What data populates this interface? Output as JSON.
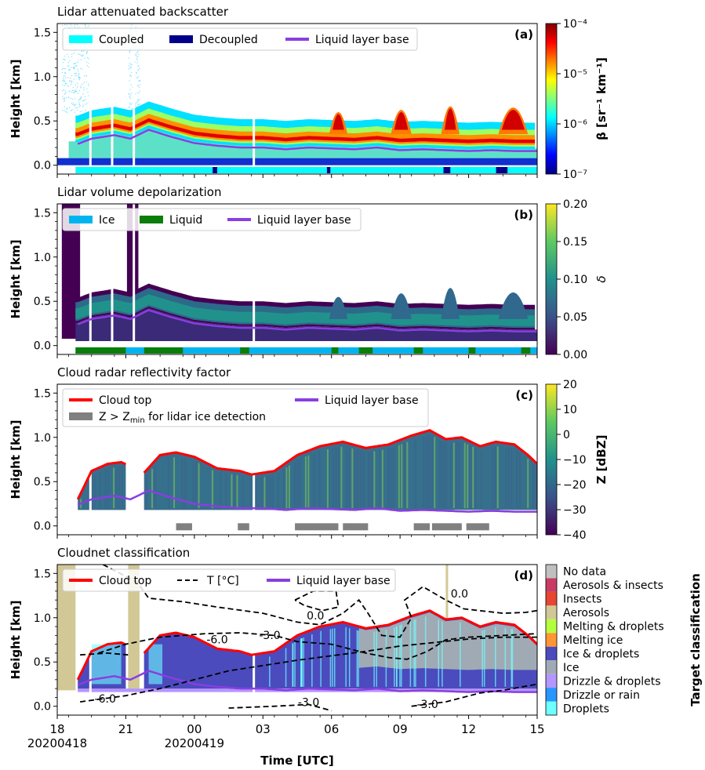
{
  "chart_data": [
    {
      "type": "heatmap",
      "id": "a",
      "title": "Lidar attenuated backscatter",
      "panel_label": "(a)",
      "ylabel": "Height [km]",
      "ylim": [
        -0.1,
        1.6
      ],
      "yticks": [
        "0.0",
        "0.5",
        "1.0",
        "1.5"
      ],
      "xlim": [
        18,
        39
      ],
      "colorbar": {
        "label": "β [sr⁻¹ km⁻¹]",
        "scale": "log",
        "ticks": [
          "10⁻⁴",
          "10⁻⁵",
          "10⁻⁶",
          "10⁻⁷"
        ],
        "range": [
          1e-07,
          0.0001
        ],
        "colors": [
          "#000080",
          "#0000ff",
          "#0080ff",
          "#00ffff",
          "#7fff7f",
          "#ffff00",
          "#ff8000",
          "#ff0000",
          "#800000"
        ]
      },
      "legend": [
        {
          "name": "Coupled",
          "color": "#00ffff",
          "kind": "patch"
        },
        {
          "name": "Decoupled",
          "color": "#00008b",
          "kind": "patch"
        },
        {
          "name": "Liquid layer base",
          "color": "#8a3ee0",
          "kind": "line"
        }
      ],
      "legend_placement": "top-left",
      "series": [
        {
          "name": "Liquid layer base",
          "x": [
            18.5,
            19.5,
            20.5,
            21.2,
            22.5,
            24,
            25.5,
            27,
            28.5,
            30,
            31.5,
            33,
            34.5,
            36,
            37.5,
            39
          ],
          "y": [
            0.2,
            0.3,
            0.35,
            0.3,
            0.32,
            0.28,
            0.26,
            0.24,
            0.22,
            0.2,
            0.18,
            0.18,
            0.17,
            0.16,
            0.17,
            0.24
          ]
        }
      ]
    },
    {
      "type": "heatmap",
      "id": "b",
      "title": "Lidar volume depolarization",
      "panel_label": "(b)",
      "ylabel": "Height [km]",
      "ylim": [
        -0.1,
        1.6
      ],
      "yticks": [
        "0.0",
        "0.5",
        "1.0",
        "1.5"
      ],
      "xlim": [
        18,
        39
      ],
      "colorbar": {
        "label": "δ",
        "scale": "linear",
        "ticks": [
          "0.20",
          "0.15",
          "0.10",
          "0.05",
          "0.00"
        ],
        "range": [
          0,
          0.2
        ],
        "colors": [
          "#440154",
          "#3b528b",
          "#21918c",
          "#5ec962",
          "#fde725"
        ]
      },
      "legend": [
        {
          "name": "Ice",
          "color": "#00b4f0",
          "kind": "patch"
        },
        {
          "name": "Liquid",
          "color": "#0a7d0a",
          "kind": "patch"
        },
        {
          "name": "Liquid layer base",
          "color": "#8a3ee0",
          "kind": "line"
        }
      ],
      "legend_placement": "top-left"
    },
    {
      "type": "heatmap",
      "id": "c",
      "title": "Cloud radar reflectivity factor",
      "panel_label": "(c)",
      "ylabel": "Height [km]",
      "ylim": [
        -0.1,
        1.6
      ],
      "yticks": [
        "0.0",
        "0.5",
        "1.0",
        "1.5"
      ],
      "xlim": [
        18,
        39
      ],
      "colorbar": {
        "label": "Z [dBZ]",
        "scale": "linear",
        "ticks": [
          "20",
          "10",
          "0",
          "−10",
          "−20",
          "−30",
          "−40"
        ],
        "range": [
          -40,
          20
        ],
        "colors": [
          "#440154",
          "#3b528b",
          "#21918c",
          "#5ec962",
          "#fde725"
        ]
      },
      "legend": [
        {
          "name": "Cloud top",
          "color": "#ff0000",
          "kind": "line"
        },
        {
          "name": "Z > Zmin for lidar ice detection",
          "color": "#808080",
          "kind": "patch"
        },
        {
          "name": "Liquid layer base",
          "color": "#8a3ee0",
          "kind": "line"
        }
      ],
      "legend_placement": "top",
      "series": [
        {
          "name": "Cloud top",
          "x": [
            18.9,
            19.5,
            20.2,
            20.8,
            21.3,
            21.8,
            22.5,
            23.2,
            24,
            25,
            26,
            26.5,
            27.5,
            28.5,
            29.5,
            30.5,
            31.5,
            32.5,
            33.5,
            34.3,
            35,
            35.7,
            36.5,
            37.2,
            38,
            38.6,
            39
          ],
          "y": [
            0.3,
            0.62,
            0.7,
            0.72,
            0.66,
            0.6,
            0.8,
            0.83,
            0.78,
            0.65,
            0.62,
            0.58,
            0.62,
            0.8,
            0.9,
            0.95,
            0.88,
            0.92,
            1.02,
            1.08,
            0.98,
            1.0,
            0.9,
            0.95,
            0.92,
            0.8,
            0.7
          ]
        },
        {
          "name": "Liquid layer base",
          "x": [
            18.9,
            19.5,
            20.5,
            21.2,
            22,
            23,
            24,
            25,
            26,
            27,
            28,
            29,
            30,
            31,
            32,
            33,
            34,
            35,
            36,
            37,
            38,
            39
          ],
          "y": [
            0.24,
            0.3,
            0.34,
            0.3,
            0.4,
            0.32,
            0.25,
            0.22,
            0.2,
            0.2,
            0.18,
            0.2,
            0.19,
            0.18,
            0.2,
            0.17,
            0.18,
            0.17,
            0.16,
            0.17,
            0.16,
            0.16
          ]
        },
        {
          "name": "Z > Zmin for lidar ice detection",
          "segments": [
            [
              23.2,
              23.9
            ],
            [
              25.9,
              26.4
            ],
            [
              28.4,
              30.3
            ],
            [
              30.5,
              31.6
            ],
            [
              33.6,
              34.3
            ],
            [
              34.4,
              35.7
            ],
            [
              35.9,
              36.9
            ]
          ],
          "y": 0.0
        }
      ]
    },
    {
      "type": "heatmap",
      "id": "d",
      "title": "Cloudnet classification",
      "panel_label": "(d)",
      "ylabel": "Height [km]",
      "ylim": [
        -0.1,
        1.6
      ],
      "yticks": [
        "0.0",
        "0.5",
        "1.0",
        "1.5"
      ],
      "xlim": [
        18,
        39
      ],
      "xlabel": "Time [UTC]",
      "xticks": [
        {
          "x": 18,
          "label": "18",
          "sub": "20200418"
        },
        {
          "x": 21,
          "label": "21",
          "sub": ""
        },
        {
          "x": 24,
          "label": "00",
          "sub": "20200419"
        },
        {
          "x": 27,
          "label": "03",
          "sub": ""
        },
        {
          "x": 30,
          "label": "06",
          "sub": ""
        },
        {
          "x": 33,
          "label": "09",
          "sub": ""
        },
        {
          "x": 36,
          "label": "12",
          "sub": ""
        },
        {
          "x": 39,
          "label": "15",
          "sub": ""
        }
      ],
      "legend": [
        {
          "name": "Cloud top",
          "color": "#ff0000",
          "kind": "line"
        },
        {
          "name": "T [°C]",
          "color": "#000000",
          "kind": "dashed"
        },
        {
          "name": "Liquid layer base",
          "color": "#8a3ee0",
          "kind": "line"
        }
      ],
      "legend_placement": "top-left",
      "colorbar": {
        "label": "Target classification",
        "classes": [
          {
            "name": "No data",
            "color": "#c0c0c0"
          },
          {
            "name": "Aerosols & insects",
            "color": "#c83c64"
          },
          {
            "name": "Insects",
            "color": "#e64632"
          },
          {
            "name": "Aerosols",
            "color": "#d2c896"
          },
          {
            "name": "Melting & droplets",
            "color": "#b4ff3c"
          },
          {
            "name": "Melting ice",
            "color": "#ff9632"
          },
          {
            "name": "Ice & droplets",
            "color": "#4b4bbe"
          },
          {
            "name": "Ice",
            "color": "#a0aab4"
          },
          {
            "name": "Drizzle & droplets",
            "color": "#b496ff"
          },
          {
            "name": "Drizzle or rain",
            "color": "#2896ff"
          },
          {
            "name": "Droplets",
            "color": "#6effff"
          }
        ]
      },
      "contours": [
        {
          "label": "0.0"
        },
        {
          "label": "-3.0"
        },
        {
          "label": "-6.0"
        }
      ]
    }
  ]
}
